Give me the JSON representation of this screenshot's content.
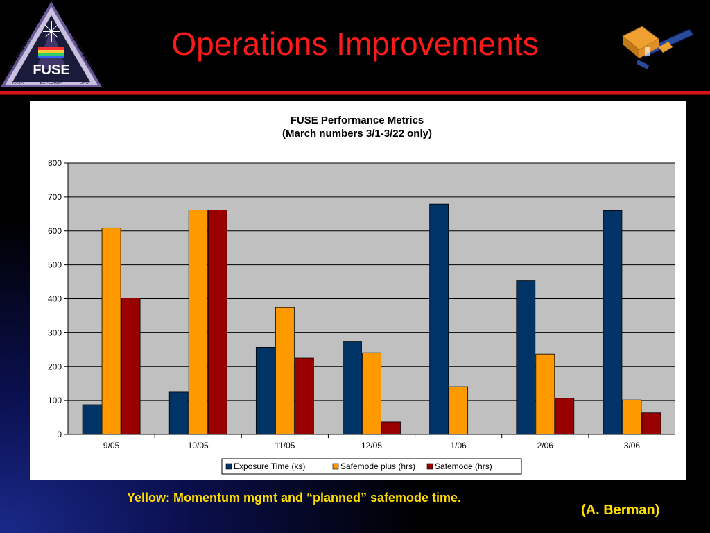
{
  "slide": {
    "title": "Operations Improvements",
    "caption": "Yellow: Momentum mgmt and “planned” safemode time.",
    "credit": "(A. Berman)"
  },
  "logo": {
    "arc_left": "FAR ULTRAVIOLET",
    "arc_right": "SPECTROSCOPIC",
    "name": "FUSE",
    "bottom_left": "NASA",
    "bottom_center": "EXPLORER",
    "bottom_right": "JHU"
  },
  "colors": {
    "title": "#ff1a1a",
    "caption": "#ffde00",
    "divider": "#d41414",
    "plot_bg": "#c0c0c0"
  },
  "chart_data": {
    "type": "bar",
    "title": "FUSE Performance Metrics",
    "subtitle": "(March numbers 3/1-3/22 only)",
    "categories": [
      "9/05",
      "10/05",
      "11/05",
      "12/05",
      "1/06",
      "2/06",
      "3/06"
    ],
    "series": [
      {
        "name": "Exposure Time (ks)",
        "color": "#003366",
        "values": [
          88,
          125,
          257,
          273,
          679,
          453,
          660
        ]
      },
      {
        "name": "Safemode plus (hrs)",
        "color": "#ff9900",
        "values": [
          609,
          662,
          374,
          241,
          141,
          237,
          102
        ]
      },
      {
        "name": "Safemode (hrs)",
        "color": "#990000",
        "values": [
          402,
          662,
          225,
          37,
          0,
          107,
          64
        ]
      }
    ],
    "ylim": [
      0,
      800
    ],
    "yticks": [
      "0",
      "100",
      "200",
      "300",
      "400",
      "500",
      "600",
      "700",
      "800"
    ],
    "grid": true,
    "legend_position": "bottom"
  }
}
